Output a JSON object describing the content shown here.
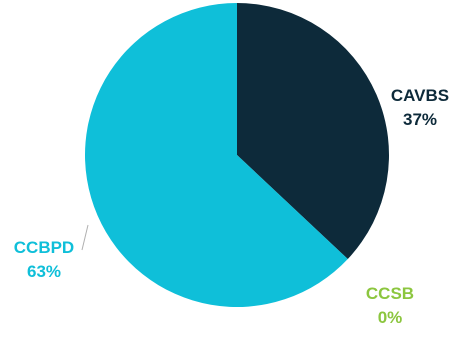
{
  "chart_data": {
    "type": "pie",
    "title": "",
    "slices": [
      {
        "label": "CAVBS",
        "percent_label": "37%",
        "value": 37,
        "color": "#0d2a3a",
        "label_color": "#0d2a3a"
      },
      {
        "label": "CCSB",
        "percent_label": "0%",
        "value": 0,
        "color": "#8cc63f",
        "label_color": "#8cc63f"
      },
      {
        "label": "CCBPD",
        "percent_label": "63%",
        "value": 63,
        "color": "#0fbfd9",
        "label_color": "#0fbfd9"
      }
    ],
    "start_angle": "12 o'clock",
    "direction": "clockwise",
    "legend": "none"
  }
}
